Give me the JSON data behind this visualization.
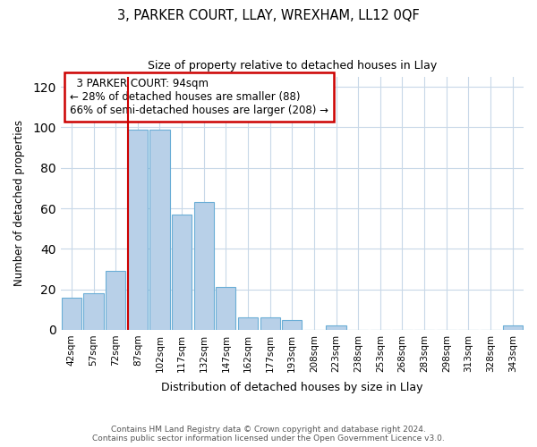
{
  "title": "3, PARKER COURT, LLAY, WREXHAM, LL12 0QF",
  "subtitle": "Size of property relative to detached houses in Llay",
  "xlabel": "Distribution of detached houses by size in Llay",
  "ylabel": "Number of detached properties",
  "bar_labels": [
    "42sqm",
    "57sqm",
    "72sqm",
    "87sqm",
    "102sqm",
    "117sqm",
    "132sqm",
    "147sqm",
    "162sqm",
    "177sqm",
    "193sqm",
    "208sqm",
    "223sqm",
    "238sqm",
    "253sqm",
    "268sqm",
    "283sqm",
    "298sqm",
    "313sqm",
    "328sqm",
    "343sqm"
  ],
  "bar_heights": [
    16,
    18,
    29,
    99,
    99,
    57,
    63,
    21,
    6,
    6,
    5,
    0,
    2,
    0,
    0,
    0,
    0,
    0,
    0,
    0,
    2
  ],
  "bar_color": "#b8d0e8",
  "bar_edge_color": "#6baed6",
  "grid_color": "#c8d8e8",
  "red_line_x": 3.0,
  "annotation_title": "3 PARKER COURT: 94sqm",
  "annotation_line1": "← 28% of detached houses are smaller (88)",
  "annotation_line2": "66% of semi-detached houses are larger (208) →",
  "annotation_box_color": "#ffffff",
  "annotation_border_color": "#cc0000",
  "red_line_color": "#cc0000",
  "ylim": [
    0,
    125
  ],
  "yticks": [
    0,
    20,
    40,
    60,
    80,
    100,
    120
  ],
  "footer_line1": "Contains HM Land Registry data © Crown copyright and database right 2024.",
  "footer_line2": "Contains public sector information licensed under the Open Government Licence v3.0."
}
